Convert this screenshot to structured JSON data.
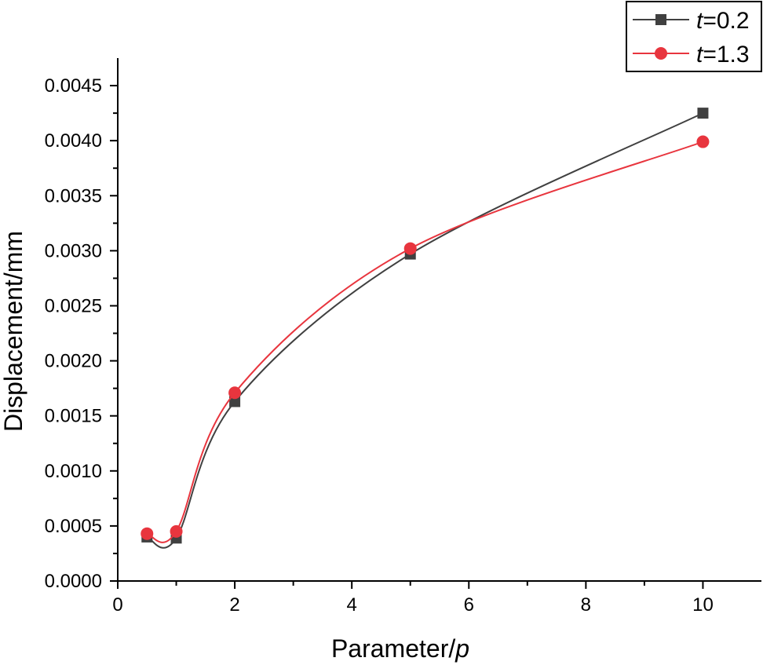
{
  "chart_data": {
    "type": "line",
    "xlabel": "Parameter/p",
    "ylabel": "Displacement/mm",
    "xlim": [
      0,
      11
    ],
    "ylim": [
      0,
      0.00475
    ],
    "xticks": [
      "0",
      "2",
      "4",
      "6",
      "8",
      "10"
    ],
    "yticks": [
      "0.0000",
      "0.0005",
      "0.0010",
      "0.0015",
      "0.0020",
      "0.0025",
      "0.0030",
      "0.0035",
      "0.0040",
      "0.0045"
    ],
    "grid": false,
    "legend_position": "top-right",
    "x": [
      0.5,
      1,
      2,
      5,
      10
    ],
    "series": [
      {
        "name": "t=0.2",
        "name_var": "t",
        "name_value": "=0.2",
        "color": "#404040",
        "marker": "square",
        "values": [
          0.0004,
          0.00039,
          0.00163,
          0.00297,
          0.00425
        ]
      },
      {
        "name": "t=1.3",
        "name_var": "t",
        "name_value": "=1.3",
        "color": "#e8353e",
        "marker": "circle",
        "values": [
          0.00043,
          0.00045,
          0.00171,
          0.00302,
          0.00399
        ]
      }
    ]
  }
}
